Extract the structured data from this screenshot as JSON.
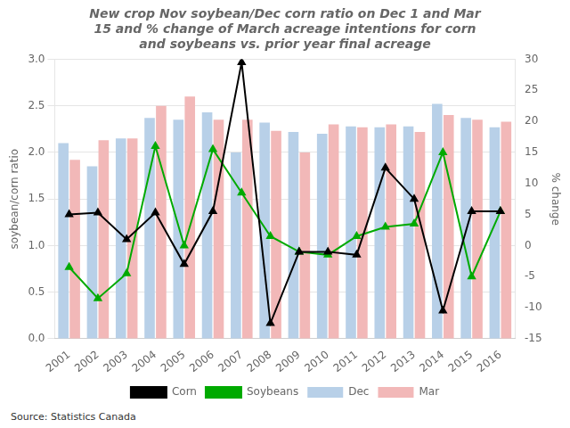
{
  "chart_data": {
    "type": "bar",
    "title": "New crop Nov soybean/Dec corn ratio on Dec 1 and Mar\n15 and % change of March acreage intentions for corn\nand soybeans vs. prior year final acreage",
    "ylabel": "soybean/corn ratio",
    "y2label": "% change",
    "categories": [
      "2001",
      "2002",
      "2003",
      "2004",
      "2005",
      "2006",
      "2007",
      "2008",
      "2009",
      "2010",
      "2011",
      "2012",
      "2013",
      "2014",
      "2015",
      "2016"
    ],
    "series": [
      {
        "name": "Dec",
        "type": "bar",
        "color": "#b8d0e8",
        "values": [
          2.1,
          1.85,
          2.15,
          2.37,
          2.35,
          2.43,
          2.0,
          2.32,
          2.22,
          2.2,
          2.28,
          2.27,
          2.28,
          2.52,
          2.37,
          2.27
        ]
      },
      {
        "name": "Mar",
        "type": "bar",
        "color": "#f2b8b8",
        "values": [
          1.92,
          2.13,
          2.15,
          2.5,
          2.6,
          2.35,
          2.35,
          2.23,
          2.0,
          2.3,
          2.27,
          2.3,
          2.22,
          2.4,
          2.35,
          2.33
        ]
      },
      {
        "name": "Corn",
        "type": "line",
        "axis": "y2",
        "color": "#000000",
        "marker": "triangle",
        "values": [
          5.0,
          5.3,
          1.0,
          5.3,
          -3.0,
          5.5,
          29.5,
          -12.5,
          -1.0,
          -1.0,
          -1.5,
          12.5,
          7.5,
          -10.5,
          5.5,
          5.5
        ]
      },
      {
        "name": "Soybeans",
        "type": "line",
        "axis": "y2",
        "color": "#00aa00",
        "marker": "triangle",
        "values": [
          -3.5,
          -8.5,
          -4.5,
          16.0,
          0.0,
          15.5,
          8.5,
          1.5,
          -1.0,
          -1.5,
          1.5,
          3.0,
          3.5,
          15.0,
          -5.0,
          5.5
        ]
      }
    ],
    "ylim": [
      0,
      3
    ],
    "yticks": [
      {
        "value": 0,
        "label": "0.0"
      },
      0.5,
      {
        "value": 1,
        "label": "1.0"
      },
      1.5,
      {
        "value": 2,
        "label": "2.0"
      },
      2.5,
      {
        "value": 3,
        "label": "3.0"
      }
    ],
    "y2lim": [
      -15,
      30
    ],
    "y2ticks": [
      -15,
      -10,
      -5,
      0,
      5,
      10,
      15,
      20,
      25,
      30
    ],
    "grid": true,
    "legend": "bottom",
    "annotations": [
      "Source: Statistics Canada"
    ]
  }
}
